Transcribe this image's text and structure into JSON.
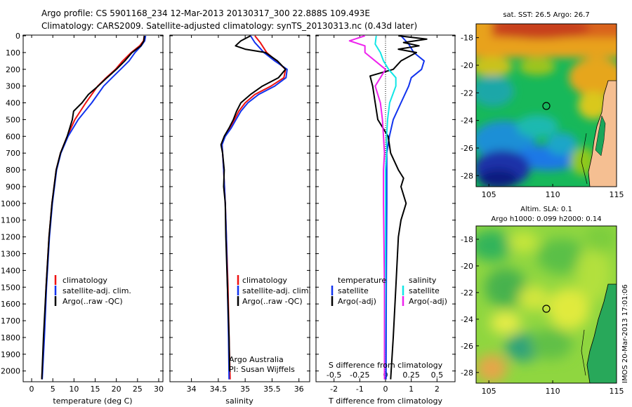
{
  "header": {
    "line1": "Argo profile: CS 5901168_234 12-Mar-2013 20130317_300 22.888S 109.493E",
    "line2": "Climatology: CARS2009. Satellite-adjusted climatology: synTS_20130313.nc (0.43d later)"
  },
  "colors": {
    "climatology": "#ee1111",
    "satellite": "#1133ee",
    "argo": "#000000",
    "s_satellite": "#11e6e6",
    "s_argo": "#ee22ee"
  },
  "chart_data": [
    {
      "type": "line",
      "name": "temperature-profile",
      "xlabel": "temperature (deg C)",
      "xlim": [
        -2,
        31
      ],
      "xticks": [
        "0",
        "5",
        "10",
        "15",
        "20",
        "25",
        "30"
      ],
      "xtick_values": [
        0,
        5,
        10,
        15,
        20,
        25,
        30
      ],
      "ylim": [
        0,
        2060
      ],
      "yticks": [
        "0",
        "100",
        "200",
        "300",
        "400",
        "500",
        "600",
        "700",
        "800",
        "900",
        "1000",
        "1100",
        "1200",
        "1300",
        "1400",
        "1500",
        "1600",
        "1700",
        "1800",
        "1900",
        "2000"
      ],
      "ytick_values": [
        0,
        100,
        200,
        300,
        400,
        500,
        600,
        700,
        800,
        900,
        1000,
        1100,
        1200,
        1300,
        1400,
        1500,
        1600,
        1700,
        1800,
        1900,
        2000
      ],
      "legend": [
        "climatology",
        "satellite-adj. clim.",
        "Argo(..raw -QC)"
      ],
      "series": [
        {
          "name": "climatology",
          "depth": [
            0,
            30,
            60,
            100,
            150,
            200,
            250,
            300,
            400,
            500,
            600,
            700,
            800,
            1000,
            1200,
            1500,
            1800,
            2050
          ],
          "values": [
            26.6,
            26.4,
            25.5,
            23.5,
            21.5,
            19.8,
            17.6,
            15.6,
            12.8,
            10.2,
            8.4,
            6.8,
            5.8,
            4.8,
            4.1,
            3.4,
            2.9,
            2.4
          ]
        },
        {
          "name": "satellite-adj. clim.",
          "depth": [
            0,
            30,
            60,
            100,
            150,
            200,
            250,
            300,
            400,
            500,
            600,
            700,
            800,
            1000,
            1200,
            1500,
            1800,
            2050
          ],
          "values": [
            26.9,
            26.7,
            25.9,
            24.4,
            23.0,
            21.0,
            19.0,
            17.0,
            14.2,
            11.0,
            8.6,
            6.9,
            5.9,
            4.9,
            4.2,
            3.5,
            3.0,
            2.5
          ]
        },
        {
          "name": "Argo(..raw -QC)",
          "depth": [
            0,
            30,
            60,
            100,
            150,
            200,
            250,
            300,
            350,
            400,
            450,
            500,
            600,
            700,
            800,
            1000,
            1200,
            1500,
            1800,
            2050
          ],
          "values": [
            26.6,
            26.5,
            25.8,
            23.7,
            22.0,
            20.0,
            17.8,
            15.7,
            13.4,
            11.9,
            9.9,
            9.6,
            8.4,
            6.8,
            5.8,
            4.8,
            4.1,
            3.4,
            2.8,
            2.4
          ]
        }
      ]
    },
    {
      "type": "line",
      "name": "salinity-profile",
      "xlabel": "salinity",
      "xlim": [
        33.6,
        36.2
      ],
      "xticks": [
        "34",
        "34.5",
        "35",
        "35.5",
        "36"
      ],
      "xtick_values": [
        34,
        34.5,
        35,
        35.5,
        36
      ],
      "ylim": [
        0,
        2060
      ],
      "legend": [
        "climatology",
        "satellite-adj. clim.",
        "Argo(..raw -QC)"
      ],
      "annotation": [
        "Argo Australia",
        "PI: Susan Wijffels"
      ],
      "series": [
        {
          "name": "climatology",
          "depth": [
            0,
            40,
            100,
            150,
            200,
            250,
            300,
            350,
            400,
            450,
            500,
            550,
            600,
            650,
            700,
            800,
            1000,
            1200,
            1500,
            1800,
            2050
          ],
          "values": [
            35.18,
            35.28,
            35.4,
            35.58,
            35.75,
            35.72,
            35.48,
            35.18,
            35.0,
            34.88,
            34.8,
            34.72,
            34.62,
            34.57,
            34.58,
            34.6,
            34.63,
            34.65,
            34.68,
            34.7,
            34.72
          ]
        },
        {
          "name": "satellite-adj. clim.",
          "depth": [
            0,
            40,
            100,
            150,
            200,
            250,
            300,
            350,
            400,
            450,
            500,
            550,
            600,
            650,
            700,
            800,
            1000,
            1200,
            1500,
            1800,
            2050
          ],
          "values": [
            35.1,
            35.18,
            35.35,
            35.55,
            35.78,
            35.76,
            35.55,
            35.25,
            35.05,
            34.92,
            34.83,
            34.74,
            34.63,
            34.57,
            34.58,
            34.6,
            34.63,
            34.65,
            34.67,
            34.69,
            34.7
          ]
        },
        {
          "name": "Argo(..raw -QC)",
          "depth": [
            0,
            30,
            60,
            80,
            100,
            150,
            200,
            250,
            300,
            350,
            400,
            450,
            500,
            550,
            600,
            650,
            700,
            800,
            900,
            1000,
            1200,
            1500,
            1800,
            2000
          ],
          "values": [
            35.1,
            34.92,
            34.82,
            35.0,
            35.38,
            35.6,
            35.75,
            35.62,
            35.32,
            35.1,
            34.92,
            34.84,
            34.78,
            34.7,
            34.61,
            34.55,
            34.58,
            34.61,
            34.6,
            34.63,
            34.64,
            34.67,
            34.7,
            34.71
          ]
        }
      ]
    },
    {
      "type": "line",
      "name": "difference-profile",
      "xlabel": "T difference from climatology",
      "xlabel_top": "S difference from climatology",
      "xlim": [
        -2.7,
        2.7
      ],
      "xticks": [
        "-2",
        "-1",
        "0",
        "1",
        "2"
      ],
      "xtick_values": [
        -2,
        -1,
        0,
        1,
        2
      ],
      "s_xticks": [
        "-0.5",
        "-0.25",
        "0",
        "0.25",
        "0.5"
      ],
      "s_xtick_values": [
        -0.5,
        -0.25,
        0,
        0.25,
        0.5
      ],
      "ylim": [
        0,
        2060
      ],
      "legend_temperature": [
        "temperature",
        "satellite",
        "Argo(-adj)"
      ],
      "legend_salinity": [
        "salinity",
        "satellite",
        "Argo(-adj)"
      ],
      "series": [
        {
          "name": "T satellite",
          "depth": [
            0,
            50,
            100,
            150,
            200,
            250,
            300,
            400,
            500,
            600,
            700,
            800,
            1000,
            1500,
            2050
          ],
          "values": [
            0.6,
            0.9,
            1.1,
            1.5,
            1.4,
            1.0,
            0.9,
            0.6,
            0.3,
            0.15,
            0.05,
            0.05,
            0.05,
            0.03,
            0.02
          ]
        },
        {
          "name": "T Argo(-adj)",
          "depth": [
            0,
            20,
            40,
            60,
            80,
            100,
            150,
            200,
            240,
            300,
            400,
            500,
            600,
            700,
            800,
            850,
            900,
            1000,
            1100,
            1200,
            1500,
            1800,
            2050
          ],
          "values": [
            0.5,
            1.6,
            0.7,
            1.3,
            0.5,
            1.2,
            0.6,
            0.3,
            -0.6,
            -0.5,
            -0.4,
            -0.3,
            0.1,
            0.2,
            0.5,
            0.7,
            0.6,
            0.8,
            0.6,
            0.5,
            0.4,
            0.3,
            0.2
          ]
        },
        {
          "name": "S satellite",
          "depth": [
            0,
            50,
            100,
            150,
            200,
            250,
            300,
            400,
            500,
            600,
            700,
            800,
            1000,
            1500,
            2050
          ],
          "values": [
            -0.09,
            -0.1,
            -0.05,
            -0.02,
            0.03,
            0.1,
            0.1,
            0.04,
            0.02,
            0.01,
            0.01,
            0.0,
            0.0,
            0.0,
            -0.01
          ]
        },
        {
          "name": "S Argo(-adj)",
          "depth": [
            0,
            30,
            60,
            100,
            150,
            200,
            250,
            300,
            400,
            500,
            600,
            700,
            800,
            1000,
            1500,
            2050
          ],
          "values": [
            -0.2,
            -0.35,
            -0.2,
            -0.2,
            -0.1,
            0.0,
            -0.05,
            -0.1,
            -0.05,
            -0.03,
            -0.02,
            -0.01,
            -0.02,
            -0.02,
            -0.01,
            -0.01
          ]
        }
      ]
    },
    {
      "type": "heatmap",
      "name": "sst-map",
      "title": "sat. SST: 26.5 Argo: 26.7",
      "xlim": [
        104,
        115
      ],
      "ylim": [
        -28.8,
        -17
      ],
      "xticks": [
        "105",
        "110",
        "115"
      ],
      "xtick_values": [
        105,
        110,
        115
      ],
      "yticks": [
        "-18",
        "-20",
        "-22",
        "-24",
        "-26",
        "-28"
      ],
      "ytick_values": [
        -18,
        -20,
        -22,
        -24,
        -26,
        -28
      ],
      "marker": {
        "lon": 109.493,
        "lat": -22.888
      }
    },
    {
      "type": "heatmap",
      "name": "sla-map",
      "title_line1": "Altim. SLA: 0.1",
      "title_line2": "Argo h1000: 0.099 h2000: 0.14",
      "xlim": [
        104,
        115
      ],
      "ylim": [
        -28.8,
        -17
      ],
      "xticks": [
        "105",
        "110",
        "115"
      ],
      "xtick_values": [
        105,
        110,
        115
      ],
      "yticks": [
        "-18",
        "-20",
        "-22",
        "-24",
        "-26",
        "-28"
      ],
      "ytick_values": [
        -18,
        -20,
        -22,
        -24,
        -26,
        -28
      ],
      "marker": {
        "lon": 109.493,
        "lat": -22.888
      }
    }
  ],
  "watermark": "IMOS 20-Mar-2013 17:01:06"
}
